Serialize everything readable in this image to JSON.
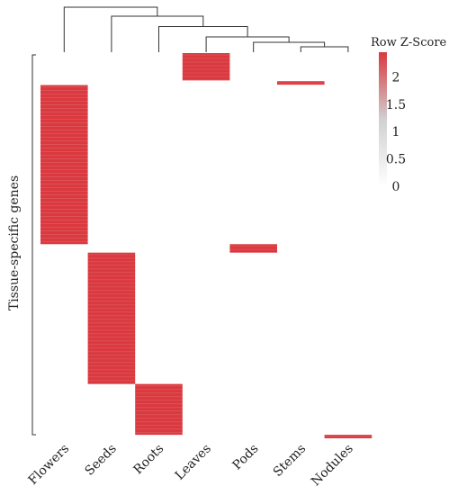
{
  "chart_data": {
    "type": "heatmap",
    "title": "",
    "xlabel": "",
    "ylabel": "Tissue-specific genes",
    "columns": [
      "Flowers",
      "Seeds",
      "Roots",
      "Leaves",
      "Pods",
      "Stems",
      "Nodules"
    ],
    "legend": {
      "title": "Row Z-Score",
      "ticks": [
        0,
        0.5,
        1,
        1.5,
        2
      ],
      "tick_labels": [
        "0",
        "0.5",
        "1",
        "1.5",
        "2"
      ],
      "range": [
        0,
        2.45
      ],
      "color_low": "#ffffff",
      "color_high": "#d9393f"
    },
    "row_range": [
      0,
      1
    ],
    "blocks": [
      {
        "tissue": "Leaves",
        "row_start": 0.0,
        "row_end": 0.071,
        "z": 2.45
      },
      {
        "tissue": "Stems",
        "row_start": 0.073,
        "row_end": 0.082,
        "z": 2.45
      },
      {
        "tissue": "Flowers",
        "row_start": 0.083,
        "row_end": 0.496,
        "z": 2.45
      },
      {
        "tissue": "Pods",
        "row_start": 0.496,
        "row_end": 0.518,
        "z": 2.45
      },
      {
        "tissue": "Seeds",
        "row_start": 0.518,
        "row_end": 0.859,
        "z": 2.45
      },
      {
        "tissue": "Roots",
        "row_start": 0.859,
        "row_end": 0.991,
        "z": 2.45
      },
      {
        "tissue": "Nodules",
        "row_start": 0.991,
        "row_end": 1.0,
        "z": 2.45
      }
    ],
    "dendrogram": {
      "leaves": [
        "Flowers",
        "Seeds",
        "Roots",
        "Leaves",
        "Pods",
        "Stems",
        "Nodules"
      ],
      "merges": [
        {
          "id": "m1",
          "left": "Stems",
          "right": "Nodules",
          "height": 0.12
        },
        {
          "id": "m2",
          "left": "Pods",
          "right": "m1",
          "height": 0.22
        },
        {
          "id": "m3",
          "left": "Leaves",
          "right": "m2",
          "height": 0.34
        },
        {
          "id": "m4",
          "left": "Roots",
          "right": "m3",
          "height": 0.57
        },
        {
          "id": "m5",
          "left": "Seeds",
          "right": "m4",
          "height": 0.8
        },
        {
          "id": "m6",
          "left": "Flowers",
          "right": "m5",
          "height": 1.0
        }
      ]
    }
  }
}
